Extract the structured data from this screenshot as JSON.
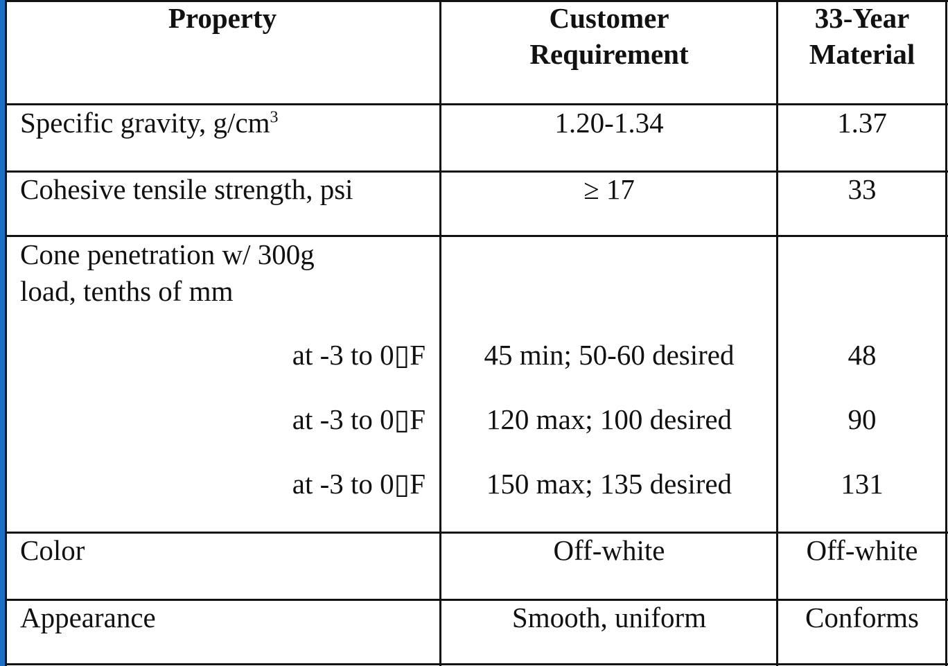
{
  "header": {
    "property": "Property",
    "requirement_line1": "Customer",
    "requirement_line2": "Requirement",
    "material_line1": "33-Year",
    "material_line2": "Material"
  },
  "rows": [
    {
      "property": "Specific gravity, g/cm",
      "property_sup": "3",
      "requirement": "1.20-1.34",
      "material": "1.37"
    },
    {
      "property": "Cohesive tensile strength, psi",
      "requirement": "≥ 17",
      "material": "33"
    },
    {
      "property_line1": "Cone penetration w/ 300g",
      "property_line2": "load, tenths of mm",
      "sub": [
        {
          "condition": "at -3 to 0▯F",
          "requirement": "45 min; 50-60 desired",
          "material": "48"
        },
        {
          "condition": "at -3 to 0▯F",
          "requirement": "120 max; 100 desired",
          "material": "90"
        },
        {
          "condition": "at -3 to 0▯F",
          "requirement": "150 max; 135 desired",
          "material": "131"
        }
      ]
    },
    {
      "property": "Color",
      "requirement": "Off-white",
      "material": "Off-white"
    },
    {
      "property": "Appearance",
      "requirement": "Smooth, uniform",
      "material": "Conforms"
    }
  ],
  "colors": {
    "left_strip": "#1a6fc4",
    "grid": "#111111"
  }
}
